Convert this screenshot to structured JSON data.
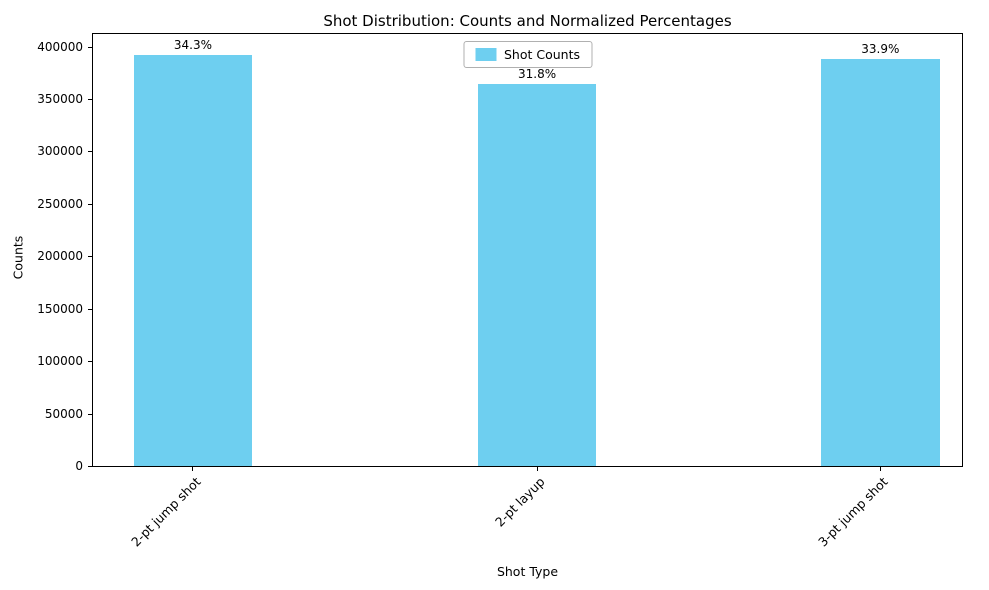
{
  "chart_data": {
    "type": "bar",
    "title": "Shot Distribution: Counts and Normalized Percentages",
    "xlabel": "Shot Type",
    "ylabel": "Counts",
    "categories": [
      "2-pt jump shot",
      "2-pt layup",
      "3-pt jump shot"
    ],
    "values": [
      392000,
      364000,
      388000
    ],
    "bar_labels": [
      "34.3%",
      "31.8%",
      "33.9%"
    ],
    "legend": [
      "Shot Counts"
    ],
    "legend_position": "upper center",
    "bar_color": "#6ecff0",
    "ylim": [
      0,
      412000
    ],
    "yticks": [
      0,
      50000,
      100000,
      150000,
      200000,
      250000,
      300000,
      350000,
      400000
    ],
    "grid": false,
    "layout": {
      "bar_center_fractions": [
        0.115,
        0.511,
        0.906
      ],
      "bar_width_fraction": 0.1366
    }
  }
}
